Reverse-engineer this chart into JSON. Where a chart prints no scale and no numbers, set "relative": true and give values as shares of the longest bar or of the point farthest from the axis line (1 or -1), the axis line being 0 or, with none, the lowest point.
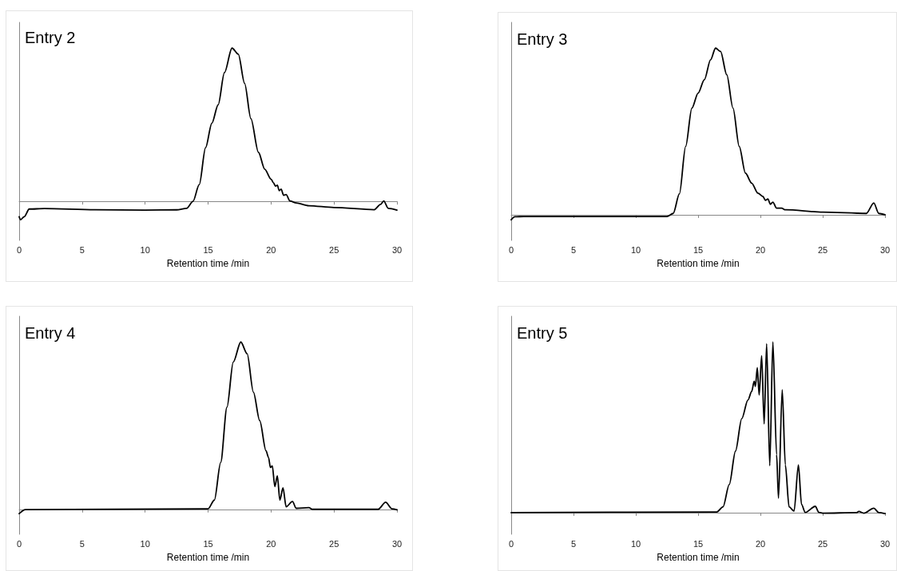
{
  "chart_data": [
    {
      "type": "line",
      "title": "Entry 2",
      "xlabel": "Retention time /min",
      "relative": true,
      "color": "#000000",
      "marker": "none",
      "line_style": "solid",
      "grid": false,
      "xlim": [
        0,
        30
      ],
      "xticks": [
        0,
        5,
        10,
        15,
        20,
        25,
        30
      ],
      "x": [
        0,
        0.1,
        0.4,
        0.8,
        2,
        6,
        10,
        12.5,
        13.3,
        13.8,
        14.3,
        14.8,
        15.3,
        15.8,
        16.3,
        16.9,
        17.4,
        17.9,
        18.4,
        19.0,
        19.5,
        20.0,
        20.2,
        20.35,
        20.5,
        20.65,
        20.8,
        21.0,
        21.2,
        21.5,
        22,
        23,
        25,
        28.2,
        28.7,
        28.95,
        29.3,
        30
      ],
      "values": [
        -0.1,
        -0.12,
        -0.1,
        -0.05,
        -0.047,
        -0.054,
        -0.057,
        -0.055,
        -0.045,
        0,
        0.11,
        0.35,
        0.51,
        0.63,
        0.84,
        1.0,
        0.96,
        0.77,
        0.54,
        0.32,
        0.21,
        0.145,
        0.12,
        0.1,
        0.105,
        0.07,
        0.08,
        0.04,
        0.045,
        0.003,
        -0.01,
        -0.028,
        -0.04,
        -0.054,
        -0.019,
        0.003,
        -0.045,
        -0.057
      ]
    },
    {
      "type": "line",
      "title": "Entry 3",
      "xlabel": "Retention time /min",
      "relative": true,
      "color": "#000000",
      "marker": "none",
      "line_style": "solid",
      "grid": false,
      "xlim": [
        0,
        30
      ],
      "xticks": [
        0,
        5,
        10,
        15,
        20,
        25,
        30
      ],
      "x": [
        0,
        0.3,
        1,
        12.5,
        13,
        13.5,
        14,
        14.5,
        15,
        15.5,
        16.0,
        16.4,
        16.8,
        17.3,
        17.8,
        18.3,
        18.8,
        19.3,
        19.8,
        20.2,
        20.4,
        20.6,
        20.8,
        21.0,
        21.3,
        21.7,
        22,
        25,
        28.5,
        29.1,
        29.5,
        30
      ],
      "values": [
        -0.03,
        -0.012,
        -0.01,
        -0.01,
        0.008,
        0.126,
        0.41,
        0.64,
        0.73,
        0.81,
        0.93,
        1.0,
        0.98,
        0.84,
        0.64,
        0.41,
        0.25,
        0.19,
        0.13,
        0.11,
        0.087,
        0.095,
        0.063,
        0.076,
        0.04,
        0.04,
        0.03,
        0.016,
        0.008,
        0.071,
        0.008,
        0
      ]
    },
    {
      "type": "line",
      "title": "Entry 4",
      "xlabel": "Retention time /min",
      "relative": true,
      "color": "#000000",
      "marker": "none",
      "line_style": "solid",
      "grid": false,
      "xlim": [
        0,
        30
      ],
      "xticks": [
        0,
        5,
        10,
        15,
        20,
        25,
        30
      ],
      "x": [
        0,
        0.5,
        15,
        15.5,
        16,
        16.5,
        17,
        17.6,
        18.1,
        18.6,
        19.1,
        19.6,
        19.8,
        19.95,
        20.1,
        20.3,
        20.5,
        20.7,
        20.95,
        21.2,
        21.7,
        22,
        23,
        23.3,
        28.5,
        29.1,
        29.6,
        30
      ],
      "values": [
        -0.026,
        -0.002,
        0.003,
        0.055,
        0.28,
        0.61,
        0.88,
        1.0,
        0.93,
        0.7,
        0.53,
        0.35,
        0.31,
        0.25,
        0.26,
        0.136,
        0.2,
        0.055,
        0.128,
        0.015,
        0.047,
        0.006,
        0.01,
        0,
        0,
        0.042,
        0.003,
        -0.003
      ]
    },
    {
      "type": "line",
      "title": "Entry 5",
      "xlabel": "Retention time /min",
      "relative": true,
      "color": "#000000",
      "marker": "none",
      "line_style": "solid",
      "grid": false,
      "xlim": [
        0,
        30
      ],
      "xticks": [
        0,
        5,
        10,
        15,
        20,
        25,
        30
      ],
      "x": [
        0,
        16.5,
        17,
        17.5,
        18,
        18.5,
        19,
        19.3,
        19.5,
        19.6,
        19.75,
        19.9,
        20.1,
        20.3,
        20.5,
        20.75,
        21.0,
        21.3,
        21.45,
        21.75,
        22.0,
        22.3,
        22.7,
        23.05,
        23.3,
        23.6,
        24.4,
        24.7,
        25,
        27.7,
        27.9,
        28.3,
        29.1,
        29.5,
        30
      ],
      "values": [
        0,
        0.004,
        0.034,
        0.165,
        0.36,
        0.55,
        0.66,
        0.71,
        0.77,
        0.74,
        0.85,
        0.69,
        0.92,
        0.52,
        0.99,
        0.275,
        1.0,
        0.34,
        0.085,
        0.72,
        0.28,
        0.034,
        0.009,
        0.28,
        0.048,
        0.001,
        0.037,
        0.001,
        -0.003,
        0,
        0.007,
        -0.003,
        0.026,
        0,
        -0.006
      ]
    }
  ]
}
